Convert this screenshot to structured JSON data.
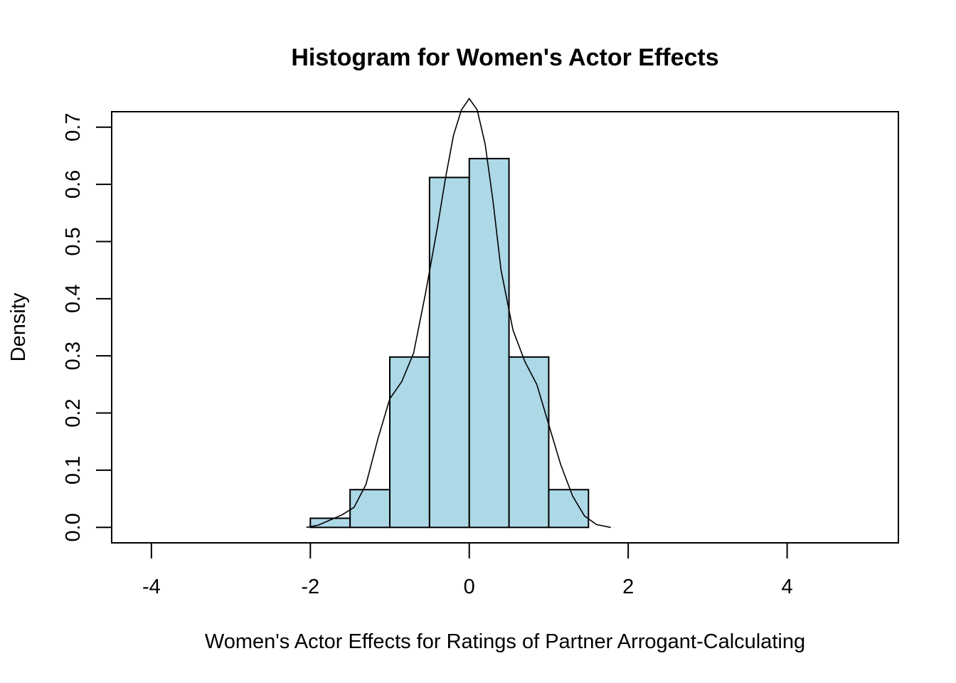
{
  "chart_data": {
    "type": "bar",
    "title": "Histogram for Women's Actor Effects",
    "xlabel": "Women's Actor Effects for Ratings of Partner Arrogant-Calculating",
    "ylabel": "Density",
    "xlim": [
      -4.5,
      5.4
    ],
    "ylim": [
      -0.027,
      0.727
    ],
    "x_ticks": [
      -4,
      -2,
      0,
      2,
      4
    ],
    "x_tick_labels": [
      "-4",
      "-2",
      "0",
      "2",
      "4"
    ],
    "y_ticks": [
      0.0,
      0.1,
      0.2,
      0.3,
      0.4,
      0.5,
      0.6,
      0.7
    ],
    "y_tick_labels": [
      "0.0",
      "0.1",
      "0.2",
      "0.3",
      "0.4",
      "0.5",
      "0.6",
      "0.7"
    ],
    "bar_color": "#ADD8E6",
    "bins": [
      {
        "start": -2.0,
        "end": -1.5,
        "density": 0.016
      },
      {
        "start": -1.5,
        "end": -1.0,
        "density": 0.066
      },
      {
        "start": -1.0,
        "end": -0.5,
        "density": 0.298
      },
      {
        "start": -0.5,
        "end": 0.0,
        "density": 0.612
      },
      {
        "start": 0.0,
        "end": 0.5,
        "density": 0.645
      },
      {
        "start": 0.5,
        "end": 1.0,
        "density": 0.298
      },
      {
        "start": 1.0,
        "end": 1.5,
        "density": 0.066
      }
    ],
    "density_curve": {
      "x": [
        -2.05,
        -1.9,
        -1.75,
        -1.6,
        -1.45,
        -1.3,
        -1.15,
        -1.0,
        -0.85,
        -0.7,
        -0.55,
        -0.4,
        -0.3,
        -0.2,
        -0.1,
        0.0,
        0.1,
        0.2,
        0.3,
        0.4,
        0.55,
        0.7,
        0.85,
        1.0,
        1.15,
        1.3,
        1.45,
        1.6,
        1.78
      ],
      "y": [
        0.0,
        0.004,
        0.013,
        0.022,
        0.035,
        0.075,
        0.155,
        0.225,
        0.255,
        0.305,
        0.41,
        0.525,
        0.61,
        0.685,
        0.73,
        0.75,
        0.73,
        0.67,
        0.57,
        0.45,
        0.345,
        0.29,
        0.25,
        0.18,
        0.11,
        0.055,
        0.02,
        0.005,
        0.0
      ]
    },
    "grid": false,
    "legend": "none"
  }
}
